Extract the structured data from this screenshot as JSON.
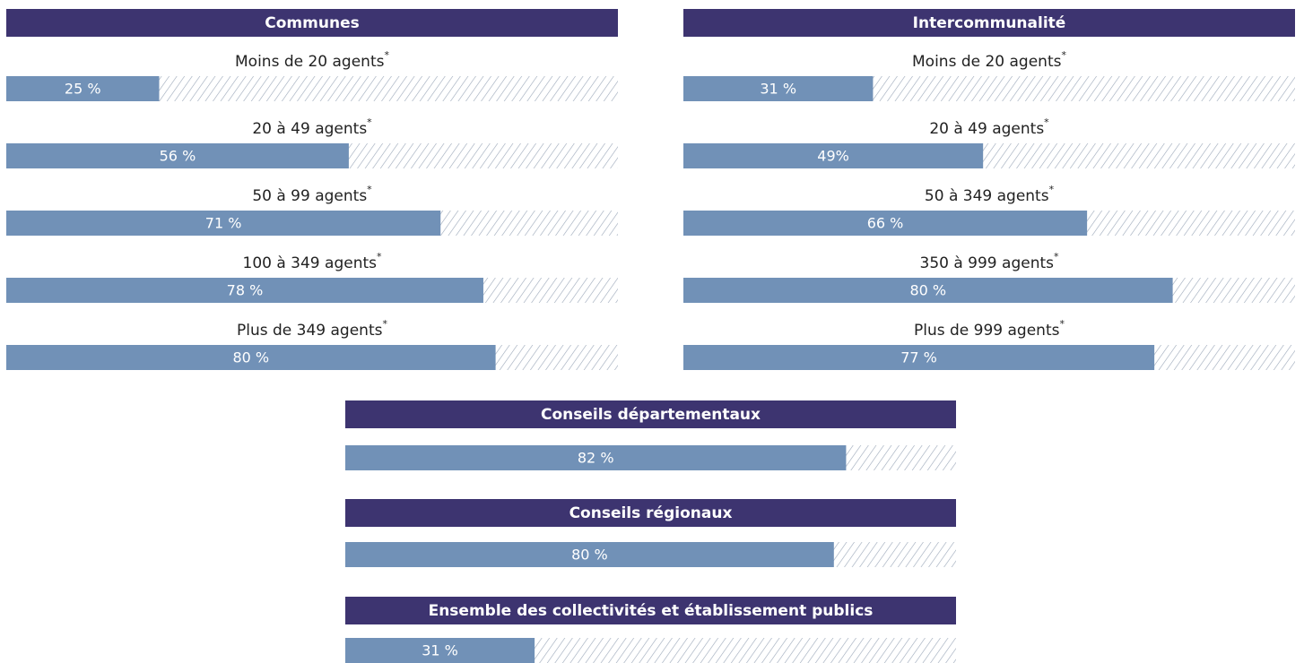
{
  "chart_data": [
    {
      "type": "bar",
      "title": "Communes",
      "category_marker": "*",
      "xlim": [
        0,
        100
      ],
      "categories": [
        "Moins de 20 agents",
        "20 à 49 agents",
        "50 à 99 agents",
        "100 à 349 agents",
        "Plus de 349 agents"
      ],
      "values": [
        25,
        56,
        71,
        78,
        80
      ],
      "value_labels": [
        "25 %",
        "56 %",
        "71 %",
        "78 %",
        "80 %"
      ],
      "color": "#7191b7"
    },
    {
      "type": "bar",
      "title": "Intercommunalité",
      "category_marker": "*",
      "xlim": [
        0,
        100
      ],
      "categories": [
        "Moins de 20 agents",
        "20 à 49 agents",
        "50 à 349 agents",
        "350 à 999 agents",
        "Plus de 999 agents"
      ],
      "values": [
        31,
        49,
        66,
        80,
        77
      ],
      "value_labels": [
        "31 %",
        "49%",
        "66 %",
        "80 %",
        "77 %"
      ],
      "color": "#7191b7"
    },
    {
      "type": "bar",
      "title": "Conseils départementaux",
      "xlim": [
        0,
        100
      ],
      "values": [
        82
      ],
      "value_labels": [
        "82 %"
      ],
      "color": "#7191b7"
    },
    {
      "type": "bar",
      "title": "Conseils régionaux",
      "xlim": [
        0,
        100
      ],
      "values": [
        80
      ],
      "value_labels": [
        "80 %"
      ],
      "color": "#7191b7"
    },
    {
      "type": "bar",
      "title": "Ensemble des collectivités et établissement publics",
      "xlim": [
        0,
        100
      ],
      "values": [
        31
      ],
      "value_labels": [
        "31 %"
      ],
      "color": "#7191b7"
    }
  ]
}
